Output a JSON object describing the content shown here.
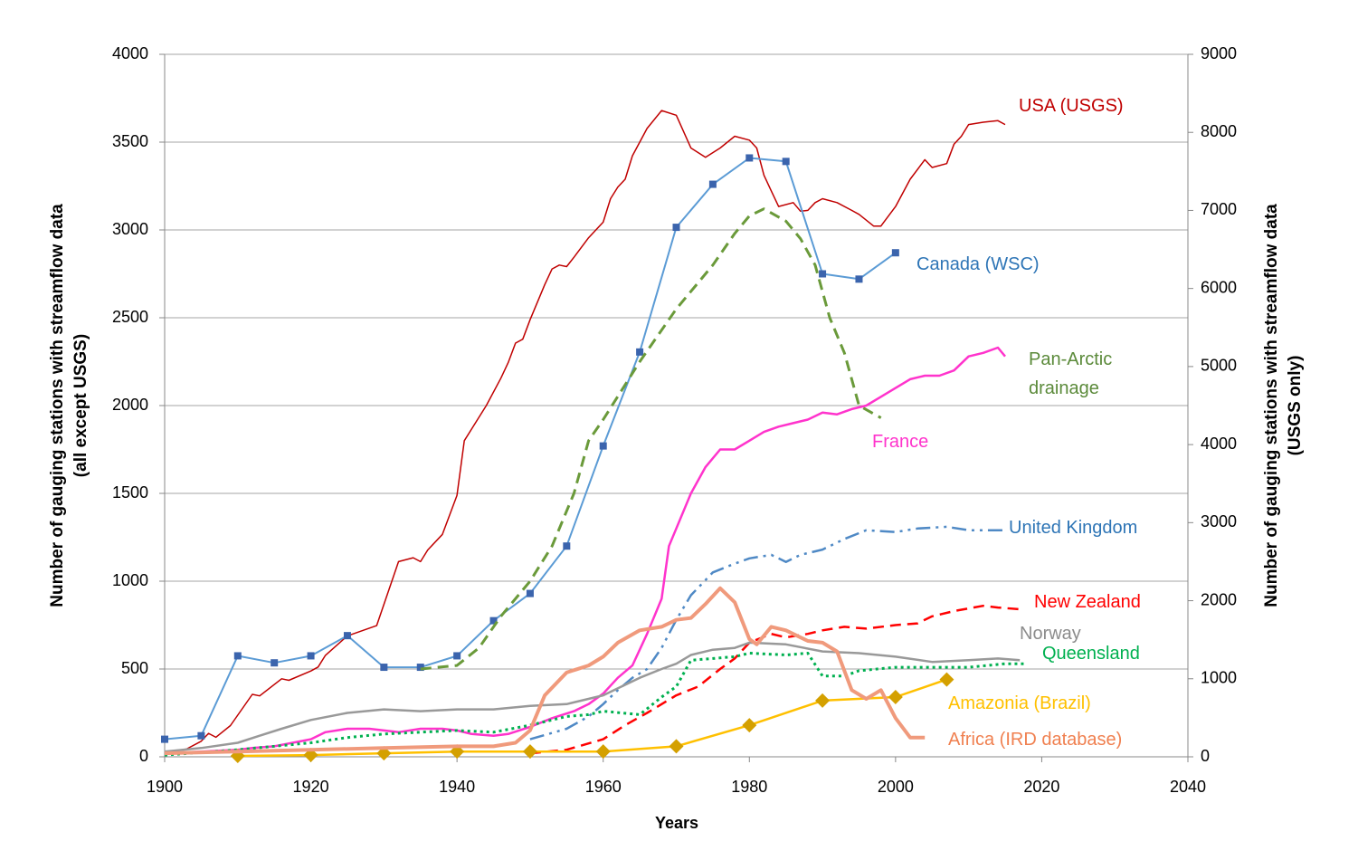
{
  "chart_data": {
    "type": "line",
    "xlabel": "Years",
    "ylabel": [
      "Number of gauging stations with streamflow data",
      "(all except USGS)"
    ],
    "y2label": [
      "Number of gauging stations with streamflow data",
      "(USGS only)"
    ],
    "xlim": [
      1900,
      2040
    ],
    "xticks": [
      1900,
      1920,
      1940,
      1960,
      1980,
      2000,
      2020,
      2040
    ],
    "ylim": [
      0,
      4000
    ],
    "yticks": [
      0,
      500,
      1000,
      1500,
      2000,
      2500,
      3000,
      3500,
      4000
    ],
    "y2lim": [
      0,
      9000
    ],
    "y2ticks": [
      0,
      1000,
      2000,
      3000,
      4000,
      5000,
      6000,
      7000,
      8000,
      9000
    ],
    "grid": true,
    "series": [
      {
        "name": "USA (USGS)",
        "color": "#c00000",
        "label_color": "#c00000",
        "axis": "y2",
        "style": "solid",
        "width": 1.5,
        "x": [
          1900,
          1903,
          1905,
          1906,
          1907,
          1909,
          1912,
          1913,
          1916,
          1917,
          1920,
          1921,
          1922,
          1925,
          1929,
          1932,
          1934,
          1935,
          1936,
          1938,
          1940,
          1941,
          1942,
          1944,
          1946,
          1947,
          1948,
          1949,
          1950,
          1952,
          1953,
          1954,
          1955,
          1956,
          1958,
          1960,
          1961,
          1962,
          1963,
          1964,
          1966,
          1968,
          1970,
          1972,
          1974,
          1976,
          1978,
          1980,
          1981,
          1982,
          1983,
          1984,
          1986,
          1987,
          1988,
          1989,
          1990,
          1992,
          1994,
          1995,
          1997,
          1998,
          2000,
          2002,
          2004,
          2005,
          2007,
          2008,
          2009,
          2010,
          2012,
          2014,
          2015
        ],
        "values": [
          50,
          100,
          200,
          300,
          250,
          400,
          800,
          780,
          1000,
          980,
          1100,
          1150,
          1300,
          1550,
          1680,
          2500,
          2550,
          2500,
          2650,
          2850,
          3350,
          4050,
          4200,
          4500,
          4850,
          5050,
          5300,
          5350,
          5600,
          6050,
          6250,
          6300,
          6280,
          6400,
          6650,
          6850,
          7150,
          7300,
          7400,
          7700,
          8050,
          8280,
          8220,
          7800,
          7680,
          7800,
          7950,
          7900,
          7800,
          7450,
          7250,
          7050,
          7100,
          6990,
          7000,
          7100,
          7150,
          7100,
          7000,
          6950,
          6800,
          6800,
          7050,
          7400,
          7650,
          7550,
          7600,
          7850,
          7950,
          8100,
          8130,
          8150,
          8100
        ]
      },
      {
        "name": "Canada (WSC)",
        "color": "#5b9bd5",
        "marker_color": "#3b64ad",
        "label_color": "#2e75b6",
        "style": "solid",
        "width": 2,
        "marker": "square",
        "x": [
          1900,
          1905,
          1910,
          1915,
          1920,
          1925,
          1930,
          1935,
          1940,
          1945,
          1950,
          1955,
          1960,
          1965,
          1970,
          1975,
          1980,
          1985,
          1990,
          1995,
          2000
        ],
        "values": [
          100,
          120,
          575,
          535,
          575,
          690,
          510,
          510,
          575,
          775,
          930,
          1200,
          1770,
          2305,
          3015,
          3260,
          3410,
          3390,
          2750,
          2720,
          2870
        ]
      },
      {
        "name": "Pan-Arctic drainage",
        "color": "#6a9a3a",
        "label_color": "#5b8a3a",
        "style": "dashed",
        "width": 3,
        "x": [
          1935,
          1940,
          1943,
          1946,
          1950,
          1953,
          1956,
          1958,
          1960,
          1965,
          1970,
          1975,
          1978,
          1980,
          1982,
          1985,
          1987,
          1989,
          1991,
          1993,
          1995,
          1998
        ],
        "values": [
          500,
          520,
          620,
          800,
          1000,
          1200,
          1500,
          1800,
          1920,
          2250,
          2550,
          2800,
          2980,
          3080,
          3120,
          3050,
          2950,
          2800,
          2500,
          2300,
          2000,
          1930
        ]
      },
      {
        "name": "France",
        "color": "#ff33cc",
        "label_color": "#ff33cc",
        "style": "solid",
        "width": 2.5,
        "x": [
          1900,
          1905,
          1910,
          1912,
          1915,
          1920,
          1922,
          1925,
          1928,
          1930,
          1932,
          1935,
          1938,
          1940,
          1942,
          1945,
          1947,
          1950,
          1953,
          1956,
          1958,
          1960,
          1962,
          1964,
          1966,
          1968,
          1969,
          1970,
          1972,
          1974,
          1976,
          1978,
          1980,
          1982,
          1984,
          1986,
          1988,
          1990,
          1992,
          1994,
          1996,
          1998,
          2000,
          2002,
          2004,
          2006,
          2008,
          2010,
          2012,
          2014,
          2015
        ],
        "values": [
          20,
          30,
          40,
          50,
          60,
          100,
          140,
          160,
          160,
          150,
          140,
          160,
          160,
          150,
          130,
          120,
          130,
          170,
          220,
          260,
          300,
          360,
          450,
          520,
          700,
          900,
          1200,
          1300,
          1500,
          1650,
          1750,
          1750,
          1800,
          1850,
          1880,
          1900,
          1920,
          1960,
          1950,
          1980,
          2000,
          2050,
          2100,
          2150,
          2170,
          2170,
          2200,
          2280,
          2300,
          2330,
          2280
        ]
      },
      {
        "name": "United Kingdom",
        "color": "#4f89c5",
        "label_color": "#2e75b6",
        "style": "dashdot",
        "width": 2.5,
        "x": [
          1950,
          1955,
          1958,
          1960,
          1962,
          1964,
          1966,
          1968,
          1970,
          1972,
          1975,
          1978,
          1980,
          1983,
          1985,
          1987,
          1990,
          1993,
          1996,
          2000,
          2003,
          2007,
          2010,
          2015
        ],
        "values": [
          100,
          160,
          230,
          300,
          380,
          450,
          500,
          620,
          780,
          920,
          1050,
          1100,
          1130,
          1150,
          1110,
          1150,
          1180,
          1240,
          1290,
          1280,
          1300,
          1310,
          1290,
          1290
        ]
      },
      {
        "name": "New Zealand",
        "color": "#ff0000",
        "label_color": "#ff0000",
        "style": "dashed",
        "width": 2.5,
        "x": [
          1950,
          1955,
          1960,
          1963,
          1966,
          1970,
          1973,
          1976,
          1978,
          1980,
          1983,
          1985,
          1988,
          1990,
          1993,
          1996,
          2000,
          2003,
          2005,
          2008,
          2012,
          2014,
          2017
        ],
        "values": [
          20,
          40,
          100,
          180,
          250,
          350,
          400,
          500,
          560,
          650,
          700,
          680,
          700,
          720,
          740,
          730,
          750,
          760,
          800,
          830,
          860,
          850,
          840
        ]
      },
      {
        "name": "Norway",
        "color": "#999999",
        "label_color": "#8c8c8c",
        "style": "solid",
        "width": 2.5,
        "x": [
          1900,
          1905,
          1910,
          1913,
          1916,
          1920,
          1925,
          1930,
          1935,
          1940,
          1945,
          1950,
          1955,
          1960,
          1965,
          1968,
          1970,
          1972,
          1975,
          1978,
          1980,
          1985,
          1990,
          1995,
          2000,
          2005,
          2010,
          2014,
          2017
        ],
        "values": [
          30,
          50,
          80,
          120,
          160,
          210,
          250,
          270,
          260,
          270,
          270,
          290,
          300,
          350,
          450,
          500,
          530,
          580,
          610,
          620,
          650,
          640,
          600,
          590,
          570,
          540,
          550,
          560,
          550
        ]
      },
      {
        "name": "Queensland",
        "color": "#00b050",
        "label_color": "#00b050",
        "style": "dotted",
        "width": 3,
        "x": [
          1900,
          1910,
          1920,
          1925,
          1930,
          1935,
          1940,
          1945,
          1950,
          1955,
          1958,
          1960,
          1965,
          1968,
          1970,
          1972,
          1975,
          1978,
          1980,
          1985,
          1988,
          1990,
          1993,
          1995,
          2000,
          2005,
          2010,
          2015,
          2018
        ],
        "values": [
          10,
          40,
          80,
          110,
          130,
          140,
          150,
          140,
          180,
          230,
          240,
          260,
          240,
          340,
          400,
          550,
          560,
          570,
          590,
          580,
          590,
          460,
          460,
          490,
          510,
          510,
          510,
          530,
          530
        ]
      },
      {
        "name": "Amazonia (Brazil)",
        "color": "#ffc000",
        "marker_color": "#d4a000",
        "label_color": "#ffc000",
        "style": "solid",
        "width": 2.5,
        "marker": "diamond",
        "x": [
          1910,
          1920,
          1930,
          1940,
          1950,
          1960,
          1970,
          1980,
          1990,
          2000,
          2007
        ],
        "values": [
          5,
          10,
          20,
          30,
          30,
          30,
          60,
          180,
          320,
          340,
          440
        ]
      },
      {
        "name": "Africa (IRD database)",
        "color": "#f09a7c",
        "label_color": "#f08050",
        "style": "solid",
        "width": 4,
        "x": [
          1900,
          1910,
          1920,
          1930,
          1940,
          1945,
          1948,
          1950,
          1952,
          1955,
          1958,
          1960,
          1962,
          1965,
          1968,
          1970,
          1972,
          1974,
          1976,
          1978,
          1980,
          1981,
          1983,
          1985,
          1988,
          1990,
          1992,
          1994,
          1996,
          1998,
          2000,
          2002,
          2004
        ],
        "values": [
          20,
          30,
          40,
          50,
          60,
          60,
          80,
          150,
          350,
          480,
          520,
          570,
          650,
          720,
          740,
          780,
          790,
          870,
          960,
          880,
          670,
          640,
          740,
          720,
          660,
          650,
          600,
          380,
          330,
          380,
          220,
          110,
          110
        ]
      }
    ]
  }
}
